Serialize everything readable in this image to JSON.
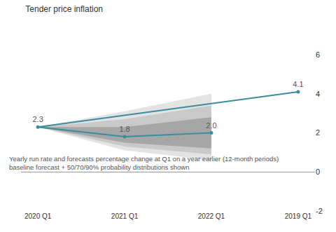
{
  "chart_data": {
    "type": "line",
    "title": "Tender price inflation",
    "subtitle": [
      "Yearly run rate and forecasts percentage change at Q1 on a year earlier (12-month periods)",
      "baseline forecast + 50/70/90% probability distributions shown"
    ],
    "categories": [
      "2019 Q1",
      "2020 Q1",
      "2021 Q1",
      "2022 Q1"
    ],
    "values": [
      4.1,
      2.3,
      1.8,
      2.0
    ],
    "value_labels": [
      "4.1",
      "2.3",
      "1.8",
      "2.0"
    ],
    "color": "#3a8e9c",
    "marker": "circle",
    "data_labels": true,
    "ylim": [
      -2,
      6
    ],
    "yticks": [
      -2,
      0,
      2,
      4,
      6
    ],
    "grid": false,
    "bands": [
      {
        "low": [
          null,
          2.3,
          1.1,
          0.6
        ],
        "high": [
          null,
          2.3,
          3.1,
          4.0
        ],
        "color": "#e3e3e3"
      },
      {
        "low": [
          null,
          2.3,
          1.3,
          0.9
        ],
        "high": [
          null,
          2.3,
          2.7,
          3.4
        ],
        "color": "#c9c9c9"
      },
      {
        "low": [
          null,
          2.3,
          1.5,
          1.2
        ],
        "high": [
          null,
          2.3,
          2.3,
          2.8
        ],
        "color": "#a6a6a6"
      }
    ]
  }
}
